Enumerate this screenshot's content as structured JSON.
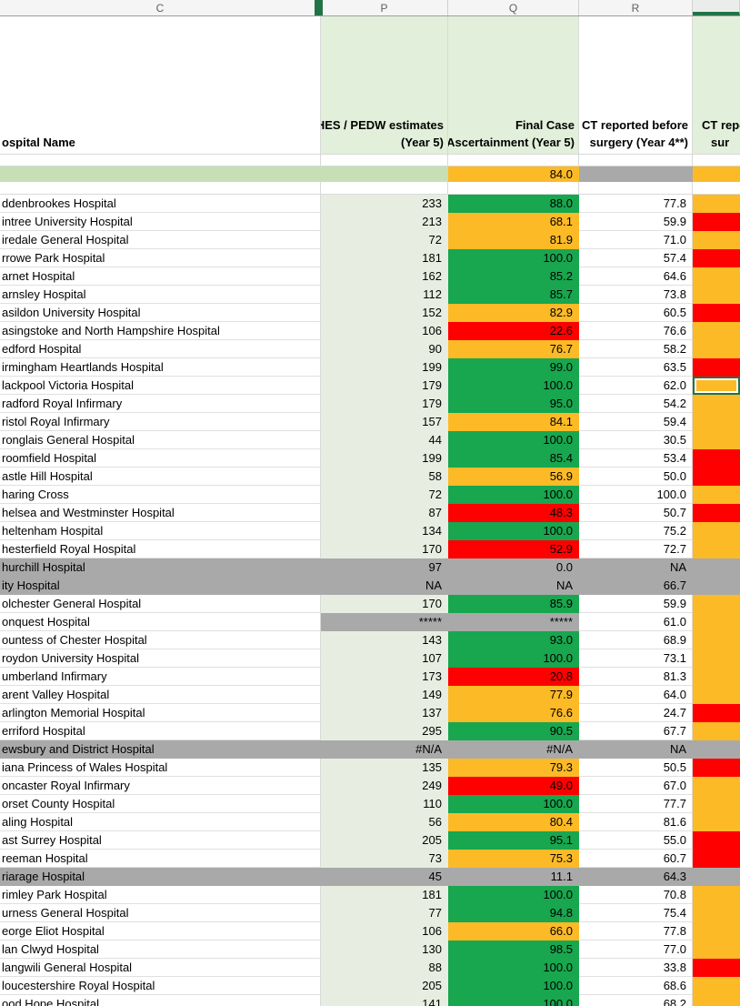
{
  "app": {
    "kind": "excel-spreadsheet-hospital-audit"
  },
  "colors": {
    "good_green": "#18a64f",
    "warn_amber": "#fcba27",
    "bad_red": "#fe0000",
    "suppressed_gray": "#a9a9a9",
    "estimates_column_fill": "#e7eee1",
    "header_fill": "#e2efda",
    "summary_band_fill": "#c7dfb5",
    "excel_green": "#217346"
  },
  "column_band": {
    "letters": {
      "c": "C",
      "p": "P",
      "q": "Q",
      "r": "R"
    }
  },
  "header": {
    "name_label": "ospital Name",
    "hes": {
      "line1": "HES / PEDW estimates",
      "line2": "(Year 5)"
    },
    "final_case": {
      "line1": "Final Case",
      "line2": "Ascertainment (Year 5)"
    },
    "ct_before_r": {
      "line1": "CT reported before",
      "line2": "surgery (Year 4**)"
    },
    "ct_before_s": {
      "line1": "CT repo",
      "line2": "sur"
    }
  },
  "summary_row": {
    "q": "84.0",
    "qc": "amber",
    "rc": "gray",
    "sc": "amber"
  },
  "rows": [
    {
      "name": "ddenbrookes Hospital",
      "p": "233",
      "q": "88.0",
      "qc": "green",
      "r": "77.8",
      "sc": "amber"
    },
    {
      "name": "intree University Hospital",
      "p": "213",
      "q": "68.1",
      "qc": "amber",
      "r": "59.9",
      "sc": "red"
    },
    {
      "name": "iredale General Hospital",
      "p": "72",
      "q": "81.9",
      "qc": "amber",
      "r": "71.0",
      "sc": "amber"
    },
    {
      "name": "rrowe Park Hospital",
      "p": "181",
      "q": "100.0",
      "qc": "green",
      "r": "57.4",
      "sc": "red"
    },
    {
      "name": "arnet Hospital",
      "p": "162",
      "q": "85.2",
      "qc": "green",
      "r": "64.6",
      "sc": "amber"
    },
    {
      "name": "arnsley Hospital",
      "p": "112",
      "q": "85.7",
      "qc": "green",
      "r": "73.8",
      "sc": "amber"
    },
    {
      "name": "asildon University Hospital",
      "p": "152",
      "q": "82.9",
      "qc": "amber",
      "r": "60.5",
      "sc": "red"
    },
    {
      "name": "asingstoke and North Hampshire Hospital",
      "p": "106",
      "q": "22.6",
      "qc": "red",
      "r": "76.6",
      "sc": "amber"
    },
    {
      "name": "edford Hospital",
      "p": "90",
      "q": "76.7",
      "qc": "amber",
      "r": "58.2",
      "sc": "amber"
    },
    {
      "name": "irmingham Heartlands Hospital",
      "p": "199",
      "q": "99.0",
      "qc": "green",
      "r": "63.5",
      "sc": "red"
    },
    {
      "name": "lackpool Victoria Hospital",
      "p": "179",
      "q": "100.0",
      "qc": "green",
      "r": "62.0",
      "sc": "amber",
      "selected": true
    },
    {
      "name": "radford Royal Infirmary",
      "p": "179",
      "q": "95.0",
      "qc": "green",
      "r": "54.2",
      "sc": "amber"
    },
    {
      "name": "ristol Royal Infirmary",
      "p": "157",
      "q": "84.1",
      "qc": "amber",
      "r": "59.4",
      "sc": "amber"
    },
    {
      "name": "ronglais General Hospital",
      "p": "44",
      "q": "100.0",
      "qc": "green",
      "r": "30.5",
      "sc": "amber"
    },
    {
      "name": "roomfield Hospital",
      "p": "199",
      "q": "85.4",
      "qc": "green",
      "r": "53.4",
      "sc": "red"
    },
    {
      "name": "astle Hill Hospital",
      "p": "58",
      "q": "56.9",
      "qc": "amber",
      "r": "50.0",
      "sc": "red"
    },
    {
      "name": "haring Cross",
      "p": "72",
      "q": "100.0",
      "qc": "green",
      "r": "100.0",
      "sc": "amber"
    },
    {
      "name": "helsea and Westminster Hospital",
      "p": "87",
      "q": "48.3",
      "qc": "red",
      "r": "50.7",
      "sc": "red"
    },
    {
      "name": "heltenham Hospital",
      "p": "134",
      "q": "100.0",
      "qc": "green",
      "r": "75.2",
      "sc": "amber"
    },
    {
      "name": "hesterfield Royal Hospital",
      "p": "170",
      "q": "52.9",
      "qc": "red",
      "r": "72.7",
      "sc": "amber"
    },
    {
      "name": "hurchill Hospital",
      "p": "97",
      "q": "0.0",
      "r": "NA",
      "row_gray": true
    },
    {
      "name": "ity Hospital",
      "p": "NA",
      "q": "NA",
      "r": "66.7",
      "row_gray": true
    },
    {
      "name": "olchester General Hospital",
      "p": "170",
      "q": "85.9",
      "qc": "green",
      "r": "59.9",
      "sc": "amber"
    },
    {
      "name": "onquest Hospital",
      "p": "*****",
      "pc": "gray",
      "q": "*****",
      "qc": "gray",
      "r": "61.0",
      "sc": "amber"
    },
    {
      "name": "ountess of Chester Hospital",
      "p": "143",
      "q": "93.0",
      "qc": "green",
      "r": "68.9",
      "sc": "amber"
    },
    {
      "name": "roydon University Hospital",
      "p": "107",
      "q": "100.0",
      "qc": "green",
      "r": "73.1",
      "sc": "amber"
    },
    {
      "name": "umberland Infirmary",
      "p": "173",
      "q": "20.8",
      "qc": "red",
      "r": "81.3",
      "sc": "amber"
    },
    {
      "name": "arent Valley Hospital",
      "p": "149",
      "q": "77.9",
      "qc": "amber",
      "r": "64.0",
      "sc": "amber"
    },
    {
      "name": "arlington Memorial Hospital",
      "p": "137",
      "q": "76.6",
      "qc": "amber",
      "r": "24.7",
      "sc": "red"
    },
    {
      "name": "erriford Hospital",
      "p": "295",
      "q": "90.5",
      "qc": "green",
      "r": "67.7",
      "sc": "amber"
    },
    {
      "name": "ewsbury and District Hospital",
      "p": "#N/A",
      "q": "#N/A",
      "r": "NA",
      "row_gray": true
    },
    {
      "name": "iana Princess of Wales Hospital",
      "p": "135",
      "q": "79.3",
      "qc": "amber",
      "r": "50.5",
      "sc": "red"
    },
    {
      "name": "oncaster Royal Infirmary",
      "p": "249",
      "q": "49.0",
      "qc": "red",
      "r": "67.0",
      "sc": "amber"
    },
    {
      "name": "orset County Hospital",
      "p": "110",
      "q": "100.0",
      "qc": "green",
      "r": "77.7",
      "sc": "amber"
    },
    {
      "name": "aling Hospital",
      "p": "56",
      "q": "80.4",
      "qc": "amber",
      "r": "81.6",
      "sc": "amber"
    },
    {
      "name": "ast Surrey Hospital",
      "p": "205",
      "q": "95.1",
      "qc": "green",
      "r": "55.0",
      "sc": "red"
    },
    {
      "name": "reeman Hospital",
      "p": "73",
      "q": "75.3",
      "qc": "amber",
      "r": "60.7",
      "sc": "red"
    },
    {
      "name": "riarage Hospital",
      "p": "45",
      "q": "11.1",
      "r": "64.3",
      "row_gray": true
    },
    {
      "name": "rimley Park Hospital",
      "p": "181",
      "q": "100.0",
      "qc": "green",
      "r": "70.8",
      "sc": "amber"
    },
    {
      "name": "urness General Hospital",
      "p": "77",
      "q": "94.8",
      "qc": "green",
      "r": "75.4",
      "sc": "amber"
    },
    {
      "name": "eorge Eliot Hospital",
      "p": "106",
      "q": "66.0",
      "qc": "amber",
      "r": "77.8",
      "sc": "amber"
    },
    {
      "name": "lan Clwyd Hospital",
      "p": "130",
      "q": "98.5",
      "qc": "green",
      "r": "77.0",
      "sc": "amber"
    },
    {
      "name": "langwili General Hospital",
      "p": "88",
      "q": "100.0",
      "qc": "green",
      "r": "33.8",
      "sc": "red"
    },
    {
      "name": "loucestershire Royal Hospital",
      "p": "205",
      "q": "100.0",
      "qc": "green",
      "r": "68.6",
      "sc": "amber"
    }
  ],
  "partial_row": {
    "name": "ood Hope Hospital",
    "p": "141",
    "q": "100.0",
    "qc": "green",
    "r": "68.2",
    "sc": "amber"
  }
}
